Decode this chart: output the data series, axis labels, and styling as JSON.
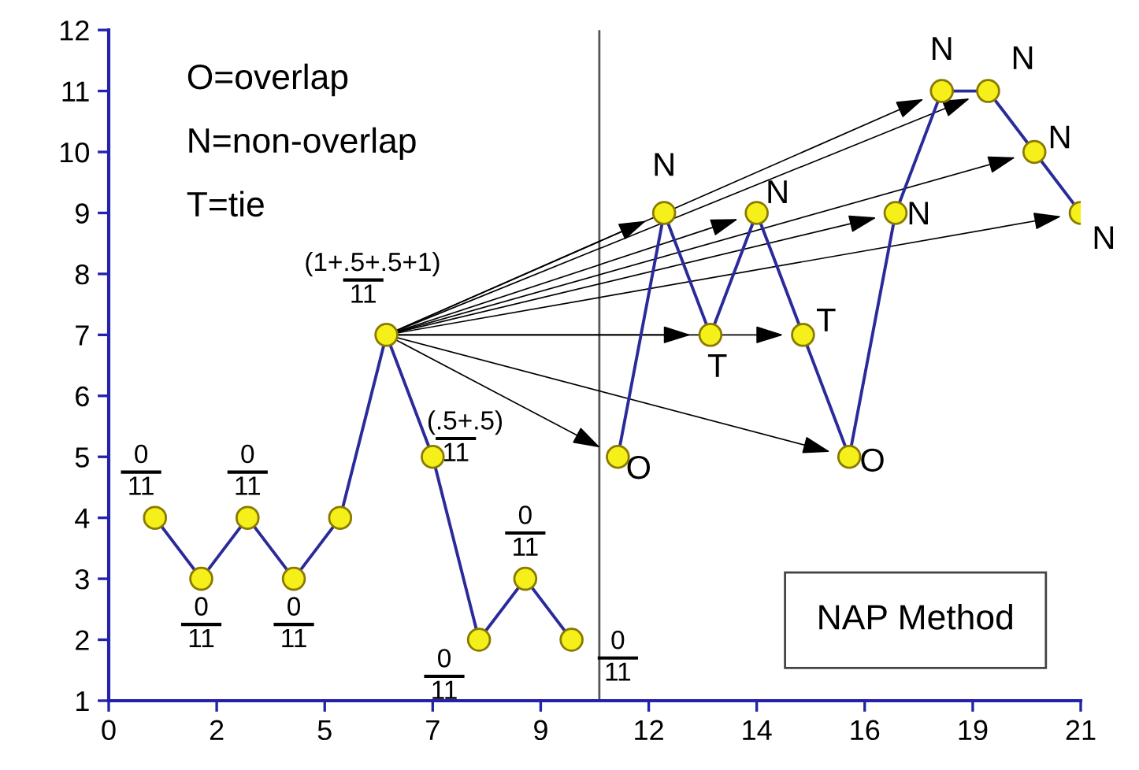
{
  "chart_data": {
    "type": "line",
    "series": [
      {
        "color": "#2a2a9a",
        "x": [
          1,
          2,
          3,
          4,
          5,
          6,
          7,
          8,
          9,
          10
        ],
        "values": [
          4,
          3,
          4,
          3,
          4,
          7,
          5,
          2,
          3,
          2
        ]
      },
      {
        "color": "#2a2a9a",
        "x": [
          11,
          12,
          13,
          14,
          15,
          16,
          17,
          18,
          19,
          20,
          21
        ],
        "values": [
          5,
          9,
          7,
          9,
          7,
          5,
          9,
          11,
          11,
          10,
          9
        ]
      }
    ],
    "marker": "circle",
    "line_style": "solid",
    "grid": false,
    "legend": false,
    "xlim": [
      0,
      21
    ],
    "ylim": [
      1,
      12
    ],
    "xticks": [
      0,
      {
        "value": 2.333,
        "label": "2"
      },
      {
        "value": 4.667,
        "label": "5"
      },
      7,
      {
        "value": 9.333,
        "label": "9"
      },
      {
        "value": 11.667,
        "label": "12"
      },
      14,
      {
        "value": 16.333,
        "label": "16"
      },
      {
        "value": 18.667,
        "label": "19"
      },
      21
    ],
    "yticks": [
      1,
      2,
      3,
      4,
      5,
      6,
      7,
      8,
      9,
      10,
      11,
      12
    ],
    "ref_lines": [
      {
        "axis": "x",
        "value": 10.6,
        "color": "#555555"
      }
    ],
    "annotations": [
      "O=overlap",
      "N=non-overlap",
      "T=tie",
      "NAP Method",
      {
        "text": "0\n11",
        "x": 1,
        "y": 4
      },
      {
        "text": "0\n11",
        "x": 2,
        "y": 3
      },
      {
        "text": "0\n11",
        "x": 3,
        "y": 4
      },
      {
        "text": "0\n11",
        "x": 4,
        "y": 3
      },
      {
        "text": "(1+.5+.5+1)\n11",
        "x": 6,
        "y": 7
      },
      {
        "text": "(.5+.5)\n11",
        "x": 7,
        "y": 5
      },
      {
        "text": "0\n11",
        "x": 8,
        "y": 2
      },
      {
        "text": "0\n11",
        "x": 9,
        "y": 3
      },
      {
        "text": "0\n11",
        "x": 10,
        "y": 2
      },
      {
        "text": "O",
        "x": 11,
        "y": 5
      },
      {
        "text": "N",
        "x": 12,
        "y": 9
      },
      {
        "text": "T",
        "x": 13,
        "y": 7
      },
      {
        "text": "N",
        "x": 14,
        "y": 9
      },
      {
        "text": "T",
        "x": 15,
        "y": 7
      },
      {
        "text": "O",
        "x": 16,
        "y": 5
      },
      {
        "text": "N",
        "x": 17,
        "y": 9
      },
      {
        "text": "N",
        "x": 18,
        "y": 11
      },
      {
        "text": "N",
        "x": 19,
        "y": 11
      },
      {
        "text": "N",
        "x": 20,
        "y": 10
      },
      {
        "text": "N",
        "x": 21,
        "y": 9
      }
    ]
  }
}
